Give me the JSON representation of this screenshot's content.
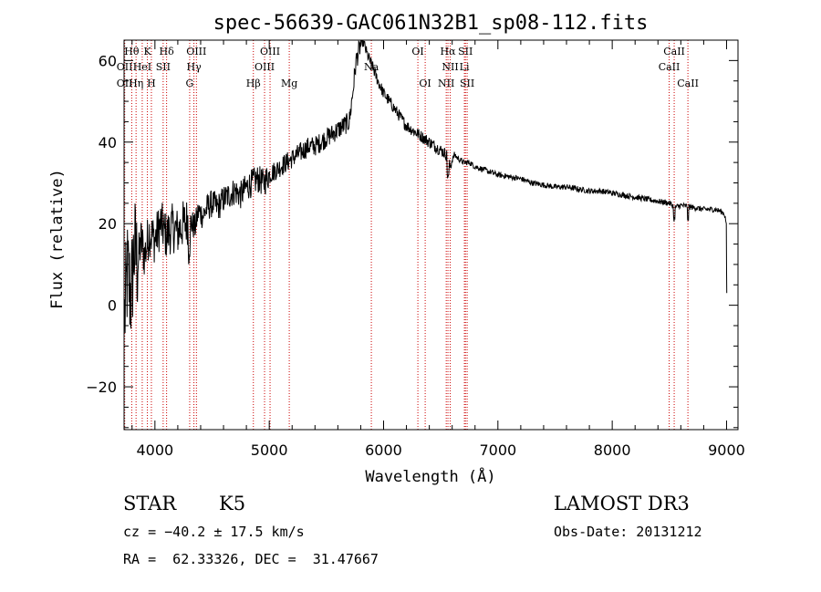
{
  "chart_data": {
    "type": "line",
    "title": "spec-56639-GAC061N32B1_sp08-112.fits",
    "xlabel": "Wavelength (Å)",
    "ylabel": "Flux (relative)",
    "xlim": [
      3730,
      9100
    ],
    "ylim": [
      -30.5,
      65
    ],
    "xticks": [
      4000,
      5000,
      6000,
      7000,
      8000,
      9000
    ],
    "yticks": [
      -20,
      0,
      20,
      40,
      60
    ],
    "series": [
      {
        "name": "flux",
        "x": [
          3730,
          3760,
          3790,
          3820,
          3850,
          3880,
          3910,
          3950,
          4000,
          4050,
          4100,
          4150,
          4200,
          4250,
          4300,
          4350,
          4380,
          4420,
          4460,
          4500,
          4550,
          4600,
          4650,
          4700,
          4750,
          4800,
          4850,
          4900,
          4950,
          5000,
          5050,
          5100,
          5150,
          5200,
          5250,
          5300,
          5350,
          5400,
          5450,
          5500,
          5550,
          5600,
          5650,
          5700,
          5730,
          5760,
          5790,
          5820,
          5850,
          5880,
          5910,
          5950,
          6000,
          6050,
          6100,
          6150,
          6200,
          6250,
          6300,
          6350,
          6400,
          6450,
          6500,
          6550,
          6580,
          6620,
          6650,
          6700,
          6750,
          6800,
          6900,
          7000,
          7100,
          7200,
          7300,
          7400,
          7500,
          7600,
          7700,
          7800,
          7900,
          8000,
          8100,
          8200,
          8300,
          8400,
          8500,
          8550,
          8600,
          8700,
          8800,
          8900,
          8950,
          8980,
          9000,
          9000,
          9005
        ],
        "y": [
          -5,
          8,
          2,
          14,
          10,
          16,
          12,
          18,
          16,
          20,
          17,
          19,
          18,
          20,
          21,
          19,
          23,
          22,
          24,
          25,
          24,
          26,
          27,
          28,
          27,
          29,
          30,
          31,
          30,
          32,
          33,
          34,
          35,
          36,
          37,
          38,
          39,
          39,
          40,
          41,
          42,
          43,
          44,
          45,
          52,
          60,
          63,
          65,
          62,
          60,
          58,
          55,
          52,
          50,
          48,
          46,
          44,
          43,
          42,
          41,
          40,
          39,
          38,
          37,
          34,
          37,
          36,
          35,
          35,
          34,
          33,
          32,
          31.5,
          31,
          30,
          29.5,
          29,
          29,
          28.5,
          28,
          28,
          27.5,
          27,
          26.5,
          26,
          25.5,
          25,
          24,
          24.5,
          24,
          23.5,
          23.5,
          23,
          22.5,
          20,
          8,
          3
        ]
      }
    ],
    "noise_amplitude": [
      {
        "from": 3730,
        "to": 3850,
        "amp": 14
      },
      {
        "from": 3850,
        "to": 4300,
        "amp": 6
      },
      {
        "from": 4300,
        "to": 5000,
        "amp": 3.5
      },
      {
        "from": 5000,
        "to": 5800,
        "amp": 2.5
      },
      {
        "from": 5800,
        "to": 6600,
        "amp": 1.5
      },
      {
        "from": 6600,
        "to": 9000,
        "amp": 0.7
      }
    ],
    "line_markers": [
      {
        "label": "Hθ",
        "x": 3797,
        "row": 0
      },
      {
        "label": "OII",
        "x": 3727,
        "row": 2
      },
      {
        "label": "OII",
        "x": 3729,
        "row": 1
      },
      {
        "label": "Hη",
        "x": 3835,
        "row": 2
      },
      {
        "label": "HeI",
        "x": 3889,
        "row": 1
      },
      {
        "label": "K",
        "x": 3934,
        "row": 0
      },
      {
        "label": "H",
        "x": 3969,
        "row": 2
      },
      {
        "label": "SII",
        "x": 4072,
        "row": 1
      },
      {
        "label": "Hδ",
        "x": 4102,
        "row": 0
      },
      {
        "label": "G",
        "x": 4304,
        "row": 2
      },
      {
        "label": "Hγ",
        "x": 4341,
        "row": 1
      },
      {
        "label": "OIII",
        "x": 4363,
        "row": 0
      },
      {
        "label": "Hβ",
        "x": 4861,
        "row": 2
      },
      {
        "label": "OIII",
        "x": 4959,
        "row": 1
      },
      {
        "label": "OIII",
        "x": 5007,
        "row": 0
      },
      {
        "label": "Mg",
        "x": 5175,
        "row": 2
      },
      {
        "label": "Na",
        "x": 5893,
        "row": 1
      },
      {
        "label": "OI",
        "x": 6300,
        "row": 0
      },
      {
        "label": "OI",
        "x": 6364,
        "row": 2
      },
      {
        "label": "NII",
        "x": 6548,
        "row": 2
      },
      {
        "label": "Hα",
        "x": 6563,
        "row": 0
      },
      {
        "label": "NII",
        "x": 6583,
        "row": 1
      },
      {
        "label": "Li",
        "x": 6707,
        "row": 1
      },
      {
        "label": "SII",
        "x": 6716,
        "row": 0
      },
      {
        "label": "SII",
        "x": 6731,
        "row": 2
      },
      {
        "label": "CaII",
        "x": 8498,
        "row": 1
      },
      {
        "label": "CaII",
        "x": 8542,
        "row": 0
      },
      {
        "label": "CaII",
        "x": 8662,
        "row": 2
      }
    ],
    "marker_color": "#cc0000",
    "line_color": "#000000"
  },
  "info": {
    "class": "STAR",
    "subclass": "K5",
    "cz": "cz = −40.2 ± 17.5 km/s",
    "coords": "RA =  62.33326, DEC =  31.47667",
    "survey": "LAMOST DR3",
    "obs_date": "Obs-Date: 20131212"
  }
}
